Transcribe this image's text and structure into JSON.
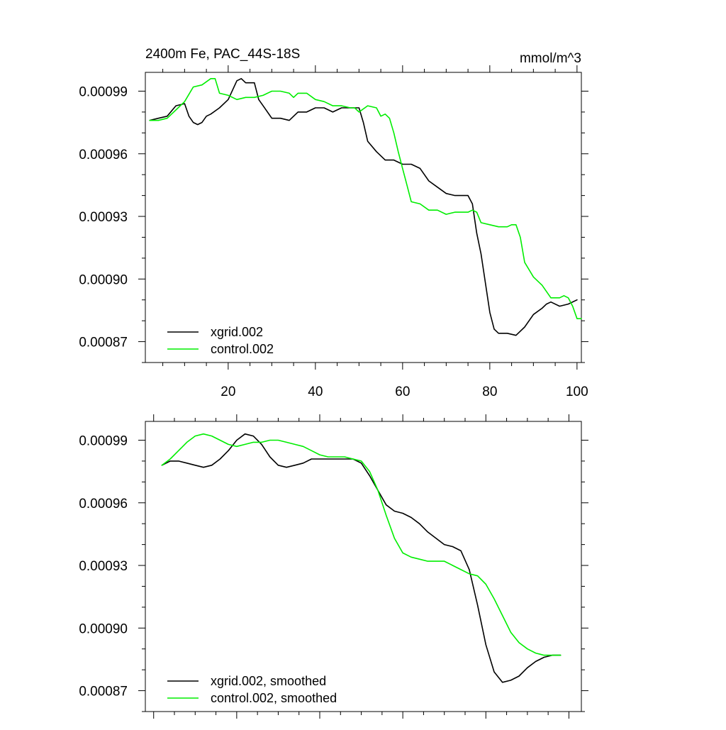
{
  "colors": {
    "xgrid": "#000000",
    "control": "#00ee00",
    "axis": "#000000",
    "background": "#ffffff"
  },
  "chart_data": [
    {
      "type": "line",
      "title": "2400m Fe, PAC_44S-18S",
      "units_label": "mmol/m^3",
      "xlim": [
        1,
        101
      ],
      "ylim": [
        0.00086,
        0.000999
      ],
      "xticks": [
        20,
        40,
        60,
        80,
        100
      ],
      "xtick_labels": [
        "20",
        "40",
        "60",
        "80",
        "100"
      ],
      "show_xtick_labels": true,
      "yticks": [
        0.00087,
        0.0009,
        0.00093,
        0.00096,
        0.00099
      ],
      "ytick_labels": [
        "0.00087",
        "0.00090",
        "0.00093",
        "0.00096",
        "0.00099"
      ],
      "legend_position": "bottom-left",
      "series": [
        {
          "name": "xgrid.002",
          "color_key": "xgrid",
          "x": [
            2,
            4,
            6,
            8,
            10,
            11,
            12,
            13,
            14,
            15,
            16,
            18,
            20,
            22,
            23,
            24,
            25,
            26,
            27,
            28,
            30,
            32,
            34,
            36,
            38,
            40,
            42,
            44,
            46,
            48,
            50,
            51,
            52,
            54,
            56,
            58,
            60,
            62,
            64,
            66,
            68,
            70,
            72,
            74,
            75,
            76,
            77,
            78,
            80,
            81,
            82,
            84,
            86,
            88,
            90,
            92,
            93,
            94,
            96,
            98,
            100
          ],
          "values": [
            0.000976,
            0.000977,
            0.000978,
            0.000983,
            0.000984,
            0.000978,
            0.000975,
            0.000974,
            0.000975,
            0.000978,
            0.000979,
            0.000982,
            0.000986,
            0.000995,
            0.000996,
            0.000994,
            0.000994,
            0.000994,
            0.000986,
            0.000983,
            0.000977,
            0.000977,
            0.000976,
            0.00098,
            0.00098,
            0.000982,
            0.000982,
            0.00098,
            0.000982,
            0.000982,
            0.000982,
            0.000975,
            0.000966,
            0.000961,
            0.000957,
            0.000957,
            0.000955,
            0.000955,
            0.000953,
            0.000947,
            0.000944,
            0.000941,
            0.00094,
            0.00094,
            0.00094,
            0.000936,
            0.000922,
            0.000912,
            0.000884,
            0.000876,
            0.000874,
            0.000874,
            0.000873,
            0.000877,
            0.000883,
            0.000886,
            0.000888,
            0.000889,
            0.000887,
            0.000888,
            0.00089
          ]
        },
        {
          "name": "control.002",
          "color_key": "control",
          "x": [
            2,
            4,
            6,
            8,
            10,
            12,
            14,
            16,
            17,
            18,
            20,
            22,
            24,
            26,
            28,
            30,
            32,
            34,
            35,
            36,
            38,
            40,
            42,
            44,
            46,
            48,
            49,
            50,
            52,
            54,
            55,
            56,
            57,
            58,
            59,
            60,
            61,
            62,
            64,
            66,
            68,
            70,
            72,
            74,
            75,
            76,
            77,
            78,
            80,
            82,
            84,
            85,
            86,
            87,
            88,
            90,
            92,
            94,
            96,
            97,
            98,
            99,
            100,
            101
          ],
          "values": [
            0.000976,
            0.000976,
            0.000977,
            0.000981,
            0.000985,
            0.000992,
            0.000993,
            0.000996,
            0.000996,
            0.000989,
            0.000988,
            0.000986,
            0.000987,
            0.000987,
            0.000988,
            0.00099,
            0.00099,
            0.000989,
            0.000987,
            0.000989,
            0.000989,
            0.000986,
            0.000985,
            0.000983,
            0.000983,
            0.000982,
            0.000982,
            0.00098,
            0.000983,
            0.000982,
            0.000978,
            0.000979,
            0.000977,
            0.00097,
            0.000961,
            0.000953,
            0.000945,
            0.000937,
            0.000936,
            0.000933,
            0.000933,
            0.000931,
            0.000932,
            0.000932,
            0.000932,
            0.000933,
            0.000932,
            0.000927,
            0.000926,
            0.000925,
            0.000925,
            0.000926,
            0.000926,
            0.00092,
            0.000908,
            0.000901,
            0.000897,
            0.000891,
            0.000891,
            0.000892,
            0.000891,
            0.000887,
            0.000881,
            0.000881
          ]
        }
      ]
    },
    {
      "type": "line",
      "title": "",
      "units_label": "",
      "xlim": [
        -2,
        103
      ],
      "ylim": [
        0.00086,
        0.000999
      ],
      "xticks": [
        20,
        40,
        60,
        80,
        100
      ],
      "xtick_labels": [
        "20",
        "40",
        "60",
        "80",
        "100"
      ],
      "show_xtick_labels": false,
      "yticks": [
        0.00087,
        0.0009,
        0.00093,
        0.00096,
        0.00099
      ],
      "ytick_labels": [
        "0.00087",
        "0.00090",
        "0.00093",
        "0.00096",
        "0.00099"
      ],
      "legend_position": "bottom-left",
      "series": [
        {
          "name": "xgrid.002, smoothed",
          "color_key": "xgrid",
          "x": [
            2,
            4,
            6,
            8,
            10,
            12,
            14,
            16,
            18,
            20,
            22,
            24,
            26,
            28,
            30,
            32,
            34,
            36,
            38,
            40,
            42,
            44,
            46,
            48,
            50,
            52,
            54,
            56,
            58,
            60,
            62,
            64,
            66,
            68,
            70,
            72,
            74,
            76,
            78,
            80,
            82,
            84,
            86,
            88,
            90,
            92,
            94,
            96,
            98
          ],
          "values": [
            0.000978,
            0.00098,
            0.00098,
            0.000979,
            0.000978,
            0.000977,
            0.000978,
            0.000981,
            0.000985,
            0.00099,
            0.000993,
            0.000992,
            0.000988,
            0.000982,
            0.000978,
            0.000977,
            0.000978,
            0.000979,
            0.000981,
            0.000981,
            0.000981,
            0.000981,
            0.000981,
            0.000981,
            0.000979,
            0.000973,
            0.000966,
            0.000959,
            0.000956,
            0.000955,
            0.000953,
            0.00095,
            0.000946,
            0.000943,
            0.00094,
            0.000939,
            0.000937,
            0.000928,
            0.000911,
            0.000892,
            0.000879,
            0.000874,
            0.000875,
            0.000877,
            0.000881,
            0.000884,
            0.000886,
            0.000887,
            0.000887
          ]
        },
        {
          "name": "control.002, smoothed",
          "color_key": "control",
          "x": [
            2,
            4,
            6,
            8,
            10,
            12,
            14,
            16,
            18,
            20,
            22,
            24,
            26,
            28,
            30,
            32,
            34,
            36,
            38,
            40,
            42,
            44,
            46,
            48,
            50,
            52,
            54,
            56,
            58,
            60,
            62,
            64,
            66,
            68,
            70,
            72,
            74,
            76,
            78,
            80,
            82,
            84,
            86,
            88,
            90,
            92,
            94,
            96,
            98
          ],
          "values": [
            0.000978,
            0.000981,
            0.000985,
            0.000989,
            0.000992,
            0.000993,
            0.000992,
            0.00099,
            0.000988,
            0.000987,
            0.000988,
            0.000989,
            0.000989,
            0.00099,
            0.00099,
            0.000989,
            0.000988,
            0.000987,
            0.000985,
            0.000983,
            0.000982,
            0.000982,
            0.000982,
            0.000981,
            0.00098,
            0.000975,
            0.000966,
            0.000954,
            0.000943,
            0.000936,
            0.000934,
            0.000933,
            0.000932,
            0.000932,
            0.000932,
            0.00093,
            0.000928,
            0.000926,
            0.000925,
            0.000921,
            0.000914,
            0.000906,
            0.000898,
            0.000893,
            0.00089,
            0.000888,
            0.000887,
            0.000887,
            0.000887
          ]
        }
      ]
    }
  ]
}
